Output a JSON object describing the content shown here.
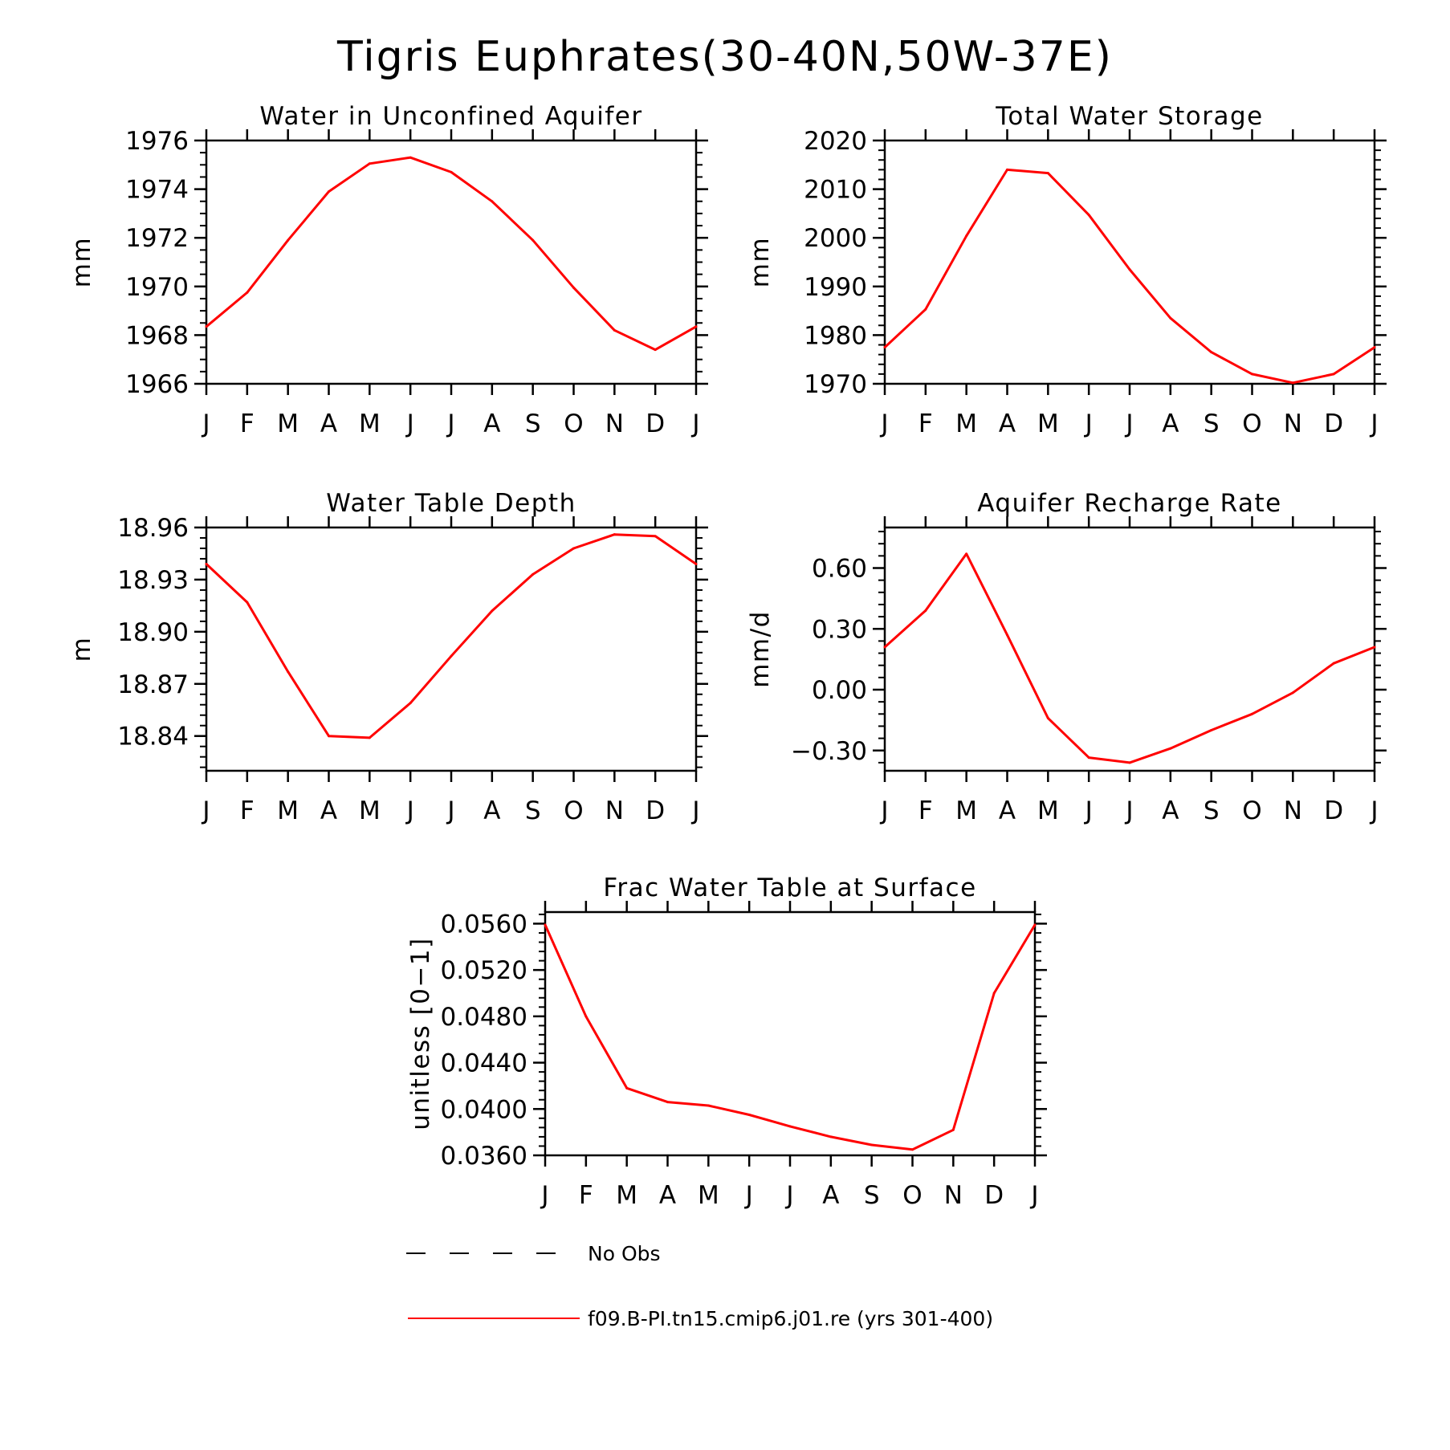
{
  "figure": {
    "title": "Tigris Euphrates(30-40N,50W-37E)",
    "series_color": "#ff0000",
    "obs_color": "#000000"
  },
  "legend": {
    "obs_label": "No Obs",
    "model_label": "f09.B-PI.tn15.cmip6.j01.re (yrs 301-400)"
  },
  "chart_data": [
    {
      "type": "line",
      "title": "Water in Unconfined Aquifer",
      "ylabel": "mm",
      "x": [
        "J",
        "F",
        "M",
        "A",
        "M",
        "J",
        "J",
        "A",
        "S",
        "O",
        "N",
        "D",
        "J"
      ],
      "ylim": [
        1966,
        1976
      ],
      "yticks": [
        1966,
        1968,
        1970,
        1972,
        1974,
        1976
      ],
      "ytick_labels": [
        "1966",
        "1968",
        "1970",
        "1972",
        "1974",
        "1976"
      ],
      "y_minor_step": 0.5,
      "grid": false,
      "series": [
        {
          "values": [
            1968.35,
            1969.75,
            1971.9,
            1973.9,
            1975.05,
            1975.3,
            1974.7,
            1973.5,
            1971.9,
            1969.95,
            1968.2,
            1967.4,
            1968.35
          ]
        }
      ]
    },
    {
      "type": "line",
      "title": "Total Water Storage",
      "ylabel": "mm",
      "x": [
        "J",
        "F",
        "M",
        "A",
        "M",
        "J",
        "J",
        "A",
        "S",
        "O",
        "N",
        "D",
        "J"
      ],
      "ylim": [
        1970,
        2020
      ],
      "yticks": [
        1970,
        1980,
        1990,
        2000,
        2010,
        2020
      ],
      "ytick_labels": [
        "1970",
        "1980",
        "1990",
        "2000",
        "2010",
        "2020"
      ],
      "y_minor_step": 2,
      "grid": false,
      "series": [
        {
          "values": [
            1977.5,
            1985.3,
            2000.4,
            2014.0,
            2013.3,
            2004.7,
            1993.5,
            1983.5,
            1976.5,
            1972.0,
            1970.2,
            1972.0,
            1977.5
          ]
        }
      ]
    },
    {
      "type": "line",
      "title": "Water Table Depth",
      "ylabel": "m",
      "x": [
        "J",
        "F",
        "M",
        "A",
        "M",
        "J",
        "J",
        "A",
        "S",
        "O",
        "N",
        "D",
        "J"
      ],
      "ylim": [
        18.82,
        18.96
      ],
      "yticks": [
        18.84,
        18.87,
        18.9,
        18.93,
        18.96
      ],
      "ytick_labels": [
        "18.84",
        "18.87",
        "18.90",
        "18.93",
        "18.96"
      ],
      "y_minor_step": 0.006,
      "grid": false,
      "series": [
        {
          "values": [
            18.939,
            18.917,
            18.877,
            18.84,
            18.839,
            18.859,
            18.886,
            18.912,
            18.933,
            18.948,
            18.956,
            18.955,
            18.939
          ]
        }
      ]
    },
    {
      "type": "line",
      "title": "Aquifer Recharge Rate",
      "ylabel": "mm/d",
      "x": [
        "J",
        "F",
        "M",
        "A",
        "M",
        "J",
        "J",
        "A",
        "S",
        "O",
        "N",
        "D",
        "J"
      ],
      "ylim": [
        -0.4,
        0.8
      ],
      "yticks": [
        -0.3,
        0.0,
        0.3,
        0.6
      ],
      "ytick_labels": [
        "−0.30",
        "0.00",
        "0.30",
        "0.60"
      ],
      "y_minor_step": 0.06,
      "grid": false,
      "series": [
        {
          "values": [
            0.21,
            0.39,
            0.67,
            0.27,
            -0.14,
            -0.335,
            -0.36,
            -0.29,
            -0.2,
            -0.12,
            -0.015,
            0.13,
            0.21
          ]
        }
      ]
    },
    {
      "type": "line",
      "title": "Frac Water Table at Surface",
      "ylabel": "unitless [0−1]",
      "x": [
        "J",
        "F",
        "M",
        "A",
        "M",
        "J",
        "J",
        "A",
        "S",
        "O",
        "N",
        "D",
        "J"
      ],
      "ylim": [
        0.036,
        0.057
      ],
      "yticks": [
        0.036,
        0.04,
        0.044,
        0.048,
        0.052,
        0.056
      ],
      "ytick_labels": [
        "0.0360",
        "0.0400",
        "0.0440",
        "0.0480",
        "0.0520",
        "0.0560"
      ],
      "y_minor_step": 0.0008,
      "grid": false,
      "series": [
        {
          "values": [
            0.0559,
            0.048,
            0.0418,
            0.0406,
            0.0403,
            0.0395,
            0.0385,
            0.0376,
            0.0369,
            0.0365,
            0.0382,
            0.05,
            0.0559
          ]
        }
      ]
    }
  ]
}
